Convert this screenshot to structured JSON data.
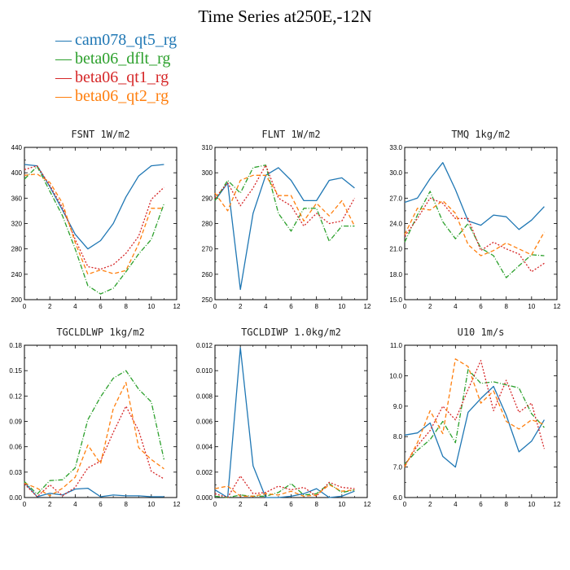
{
  "title": "Time Series at250E,-12N",
  "legend": [
    {
      "name": "cam078_qt5_rg",
      "color": "#1f77b4"
    },
    {
      "name": "beta06_dflt_rg",
      "color": "#2ca02c"
    },
    {
      "name": "beta06_qt1_rg",
      "color": "#d62728"
    },
    {
      "name": "beta06_qt2_rg",
      "color": "#ff7f0e"
    }
  ],
  "chart_data": [
    {
      "type": "line",
      "title": "FSNT   1W/m2",
      "xlim": [
        0,
        12
      ],
      "xticks": [
        "0",
        "2",
        "4",
        "6",
        "8",
        "10",
        "12"
      ],
      "ylim": [
        200,
        440
      ],
      "yticks": [
        "200",
        "240",
        "280",
        "320",
        "360",
        "400",
        "440"
      ],
      "x": [
        0,
        1,
        2,
        3,
        4,
        5,
        6,
        7,
        8,
        9,
        10,
        11
      ],
      "series": [
        {
          "name": "cam078_qt5_rg",
          "values": [
            413,
            411,
            378,
            341,
            303,
            280,
            293,
            320,
            362,
            395,
            411,
            413
          ]
        },
        {
          "name": "beta06_dflt_rg",
          "values": [
            390,
            410,
            371,
            332,
            280,
            222,
            209,
            218,
            244,
            272,
            295,
            351
          ]
        },
        {
          "name": "beta06_qt1_rg",
          "values": [
            405,
            411,
            380,
            345,
            295,
            252,
            248,
            255,
            273,
            300,
            358,
            377
          ]
        },
        {
          "name": "beta06_qt2_rg",
          "values": [
            396,
            398,
            385,
            352,
            290,
            240,
            247,
            241,
            246,
            288,
            344,
            344
          ]
        }
      ]
    },
    {
      "type": "line",
      "title": "FLNT   1W/m2",
      "xlim": [
        0,
        12
      ],
      "xticks": [
        "0",
        "2",
        "4",
        "6",
        "8",
        "10",
        "12"
      ],
      "ylim": [
        250,
        310
      ],
      "yticks": [
        "250",
        "260",
        "270",
        "280",
        "290",
        "300",
        "310"
      ],
      "x": [
        0,
        1,
        2,
        3,
        4,
        5,
        6,
        7,
        8,
        9,
        10,
        11
      ],
      "series": [
        {
          "name": "cam078_qt5_rg",
          "values": [
            289,
            296,
            254,
            284,
            299,
            302,
            297,
            289,
            289,
            297,
            298,
            294
          ]
        },
        {
          "name": "beta06_dflt_rg",
          "values": [
            289,
            297,
            292,
            302,
            303,
            284,
            277,
            286,
            286,
            273,
            279,
            279
          ]
        },
        {
          "name": "beta06_qt1_rg",
          "values": [
            290,
            296,
            287,
            294,
            303,
            290,
            287,
            279,
            284,
            280,
            281,
            290
          ]
        },
        {
          "name": "beta06_qt2_rg",
          "values": [
            292,
            285,
            297,
            299,
            299,
            291,
            291,
            281,
            288,
            283,
            289,
            279
          ]
        }
      ]
    },
    {
      "type": "line",
      "title": "TMQ   1kg/m2",
      "xlim": [
        0,
        12
      ],
      "xticks": [
        "0",
        "2",
        "4",
        "6",
        "8",
        "10",
        "12"
      ],
      "ylim": [
        15.0,
        33.0
      ],
      "yticks": [
        "15.0",
        "18.0",
        "21.0",
        "24.0",
        "27.0",
        "30.0",
        "33.0"
      ],
      "x": [
        0,
        1,
        2,
        3,
        4,
        5,
        6,
        7,
        8,
        9,
        10,
        11
      ],
      "series": [
        {
          "name": "cam078_qt5_rg",
          "values": [
            26.5,
            27.0,
            29.3,
            31.2,
            28.0,
            24.3,
            23.8,
            25.0,
            24.8,
            23.3,
            24.4,
            26.0
          ]
        },
        {
          "name": "beta06_dflt_rg",
          "values": [
            21.8,
            25.0,
            27.8,
            24.2,
            22.2,
            24.0,
            21.1,
            20.2,
            17.6,
            19.0,
            20.3,
            20.2
          ]
        },
        {
          "name": "beta06_qt1_rg",
          "values": [
            22.5,
            24.6,
            27.0,
            26.4,
            24.6,
            24.6,
            20.8,
            21.8,
            21.0,
            20.4,
            18.3,
            19.3
          ]
        },
        {
          "name": "beta06_qt2_rg",
          "values": [
            22.7,
            25.8,
            25.6,
            26.7,
            25.2,
            21.5,
            20.2,
            20.8,
            21.7,
            21.0,
            20.3,
            23.0
          ]
        }
      ]
    },
    {
      "type": "line",
      "title": "TGCLDLWP   1kg/m2",
      "xlim": [
        0,
        12
      ],
      "xticks": [
        "0",
        "2",
        "4",
        "6",
        "8",
        "10",
        "12"
      ],
      "ylim": [
        0.0,
        0.18
      ],
      "yticks": [
        "0.00",
        "0.03",
        "0.06",
        "0.09",
        "0.12",
        "0.15",
        "0.18"
      ],
      "x": [
        0,
        1,
        2,
        3,
        4,
        5,
        6,
        7,
        8,
        9,
        10,
        11
      ],
      "series": [
        {
          "name": "cam078_qt5_rg",
          "values": [
            0.018,
            0.001,
            0.005,
            0.003,
            0.01,
            0.011,
            0.001,
            0.003,
            0.002,
            0.002,
            0.001,
            0.001
          ]
        },
        {
          "name": "beta06_dflt_rg",
          "values": [
            0.019,
            0.004,
            0.02,
            0.021,
            0.035,
            0.092,
            0.119,
            0.141,
            0.15,
            0.128,
            0.113,
            0.045
          ]
        },
        {
          "name": "beta06_qt1_rg",
          "values": [
            0.016,
            0.001,
            0.015,
            0.002,
            0.012,
            0.035,
            0.043,
            0.077,
            0.108,
            0.079,
            0.031,
            0.022
          ]
        },
        {
          "name": "beta06_qt2_rg",
          "values": [
            0.017,
            0.011,
            0.002,
            0.011,
            0.024,
            0.062,
            0.04,
            0.105,
            0.136,
            0.059,
            0.045,
            0.034
          ]
        }
      ]
    },
    {
      "type": "line",
      "title": "TGCLDIWP   1.0kg/m2",
      "xlim": [
        0,
        12
      ],
      "xticks": [
        "0",
        "2",
        "4",
        "6",
        "8",
        "10",
        "12"
      ],
      "ylim": [
        0.0,
        0.012
      ],
      "yticks": [
        "0.000",
        "0.002",
        "0.004",
        "0.006",
        "0.008",
        "0.010",
        "0.012"
      ],
      "x": [
        0,
        1,
        2,
        3,
        4,
        5,
        6,
        7,
        8,
        9,
        10,
        11
      ],
      "series": [
        {
          "name": "cam078_qt5_rg",
          "values": [
            0.0006,
            0.0,
            0.0118,
            0.0025,
            0.0,
            0.0,
            0.0001,
            0.0003,
            0.0007,
            0.0,
            0.0001,
            0.0005
          ]
        },
        {
          "name": "beta06_dflt_rg",
          "values": [
            0.0001,
            0.0,
            0.0002,
            0.0001,
            0.0001,
            0.0004,
            0.0011,
            0.0002,
            0.0003,
            0.0011,
            0.0004,
            0.0006
          ]
        },
        {
          "name": "beta06_qt1_rg",
          "values": [
            0.0003,
            0.0,
            0.0017,
            0.0003,
            0.0004,
            0.0009,
            0.0006,
            0.0008,
            0.0001,
            0.0012,
            0.0008,
            0.0007
          ]
        },
        {
          "name": "beta06_qt2_rg",
          "values": [
            0.0007,
            0.0009,
            0.0001,
            0.0001,
            0.0003,
            0.0002,
            0.0005,
            0.0001,
            0.0002,
            0.001,
            0.0005,
            0.0006
          ]
        }
      ]
    },
    {
      "type": "line",
      "title": "U10   1m/s",
      "xlim": [
        0,
        12
      ],
      "xticks": [
        "0",
        "2",
        "4",
        "6",
        "8",
        "10",
        "12"
      ],
      "ylim": [
        6.0,
        11.0
      ],
      "yticks": [
        "6.0",
        "7.0",
        "8.0",
        "9.0",
        "10.0",
        "11.0"
      ],
      "x": [
        0,
        1,
        2,
        3,
        4,
        5,
        6,
        7,
        8,
        9,
        10,
        11
      ],
      "series": [
        {
          "name": "cam078_qt5_rg",
          "values": [
            8.05,
            8.12,
            8.45,
            7.35,
            7.0,
            8.8,
            9.25,
            9.65,
            8.7,
            7.5,
            7.85,
            8.55
          ]
        },
        {
          "name": "beta06_dflt_rg",
          "values": [
            7.1,
            7.55,
            7.9,
            8.5,
            7.8,
            10.2,
            9.75,
            9.8,
            9.7,
            9.6,
            8.75,
            8.3
          ]
        },
        {
          "name": "beta06_qt1_rg",
          "values": [
            7.05,
            7.7,
            8.2,
            9.0,
            8.55,
            9.55,
            10.5,
            8.85,
            9.85,
            8.8,
            9.1,
            7.6
          ]
        },
        {
          "name": "beta06_qt2_rg",
          "values": [
            7.0,
            7.8,
            8.85,
            8.1,
            10.55,
            10.3,
            9.1,
            9.5,
            8.5,
            8.25,
            8.55,
            8.4
          ]
        }
      ]
    }
  ]
}
